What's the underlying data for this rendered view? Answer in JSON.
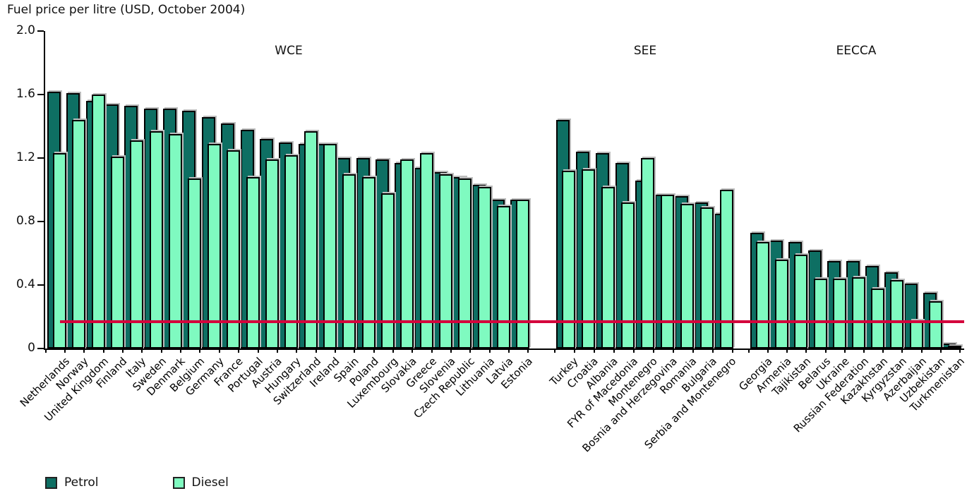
{
  "title": "Fuel price per litre (USD, October 2004)",
  "legend": {
    "petrol_label": "Petrol",
    "diesel_label": "Diesel"
  },
  "colors": {
    "petrol": "#0E6F63",
    "diesel": "#7FFAC0",
    "reference_line": "#D4043C",
    "axis": "#000000",
    "bar_border": "#000000",
    "bar_shadow": "#BDBDBD"
  },
  "chart_data": {
    "type": "bar",
    "title": "Fuel price per litre (USD, October 2004)",
    "xlabel": "",
    "ylabel": "",
    "ylim": [
      0,
      2.0
    ],
    "y_ticks": [
      2.0,
      1.6,
      1.2,
      0.8,
      0.4,
      0
    ],
    "y_tick_labels": [
      "2.0",
      "1.6",
      "1.2",
      "0.8",
      "0.4",
      "0"
    ],
    "reference_line": 0.17,
    "grid": false,
    "legend_position": "bottom-left",
    "series_names": [
      "Petrol",
      "Diesel"
    ],
    "groups": [
      {
        "label": "WCE",
        "countries": [
          "Netherlands",
          "Norway",
          "United Kingdom",
          "Finland",
          "Italy",
          "Sweden",
          "Denmark",
          "Belgium",
          "Germany",
          "France",
          "Portugal",
          "Austria",
          "Hungary",
          "Switzerland",
          "Ireland",
          "Spain",
          "Poland",
          "Luxembourg",
          "Slovakia",
          "Greece",
          "Slovenia",
          "Czech Republic",
          "Lithuania",
          "Latvia",
          "Estonia"
        ],
        "petrol": [
          1.62,
          1.61,
          1.56,
          1.54,
          1.53,
          1.51,
          1.51,
          1.5,
          1.46,
          1.42,
          1.38,
          1.32,
          1.3,
          1.29,
          1.29,
          1.2,
          1.2,
          1.19,
          1.17,
          1.14,
          1.11,
          1.08,
          1.03,
          0.94,
          0.94
        ],
        "diesel": [
          1.23,
          1.44,
          1.6,
          1.21,
          1.31,
          1.37,
          1.35,
          1.07,
          1.29,
          1.25,
          1.08,
          1.19,
          1.22,
          1.37,
          1.29,
          1.1,
          1.08,
          0.98,
          1.19,
          1.23,
          1.1,
          1.07,
          1.02,
          0.9,
          0.94
        ]
      },
      {
        "label": "SEE",
        "countries": [
          "Turkey",
          "Croatia",
          "Albania",
          "FYR of Macedonia",
          "Montenegro",
          "Bosnia and Herzegovina",
          "Romania",
          "Bulgaria",
          "Serbia and Montenegro"
        ],
        "petrol": [
          1.44,
          1.24,
          1.23,
          1.17,
          1.06,
          0.97,
          0.96,
          0.92,
          0.85
        ],
        "diesel": [
          1.12,
          1.13,
          1.02,
          0.92,
          1.2,
          0.97,
          0.91,
          0.89,
          1.0
        ]
      },
      {
        "label": "EECCA",
        "countries": [
          "Georgia",
          "Armenia",
          "Tajikistan",
          "Belarus",
          "Ukraine",
          "Russian Federation",
          "Kazakhstan",
          "Kyrgyzstan",
          "Azerbaijan",
          "Uzbekistan",
          "Turkmenistan"
        ],
        "petrol": [
          0.73,
          0.68,
          0.67,
          0.62,
          0.55,
          0.55,
          0.52,
          0.48,
          0.41,
          0.35,
          0.03
        ],
        "diesel": [
          0.67,
          0.56,
          0.59,
          0.44,
          0.44,
          0.45,
          0.38,
          0.43,
          0.18,
          0.3,
          0.02
        ]
      }
    ]
  }
}
